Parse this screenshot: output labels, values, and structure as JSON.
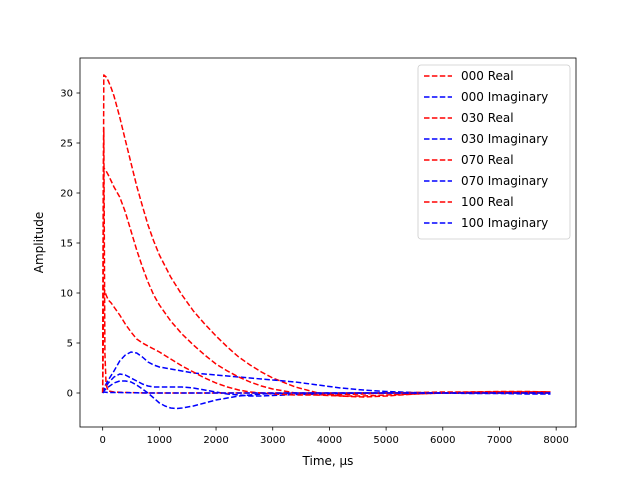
{
  "chart_data": {
    "type": "line",
    "xlabel": "Time, µs",
    "ylabel": "Amplitude",
    "xlim": [
      -400,
      8350
    ],
    "ylim": [
      -3.4,
      33.5
    ],
    "xticks": [
      0,
      1000,
      2000,
      3000,
      4000,
      5000,
      6000,
      7000,
      8000
    ],
    "yticks": [
      0,
      5,
      10,
      15,
      20,
      25,
      30
    ],
    "legend_position": "top-right",
    "colors": {
      "real": "#ff0000",
      "imaginary": "#0000ff"
    },
    "series": [
      {
        "name": "000 Real",
        "color": "#ff0000",
        "x": [
          0,
          20,
          60,
          100,
          150,
          200,
          300,
          400,
          500,
          600,
          700,
          800,
          900,
          1000,
          1200,
          1400,
          1600,
          1800,
          2000,
          2200,
          2400,
          2600,
          2800,
          3000,
          3400,
          3800,
          4200,
          4600,
          5000,
          5500,
          6000,
          6500,
          7000,
          7500,
          7900
        ],
        "y": [
          0.0,
          31.8,
          31.6,
          31.2,
          30.5,
          29.7,
          27.6,
          25.3,
          23.0,
          20.7,
          18.7,
          16.8,
          15.2,
          13.8,
          11.6,
          9.8,
          8.2,
          6.9,
          5.7,
          4.6,
          3.6,
          2.8,
          2.1,
          1.5,
          0.6,
          0.0,
          -0.3,
          -0.4,
          -0.3,
          -0.1,
          0.0,
          0.1,
          0.15,
          0.15,
          0.1
        ]
      },
      {
        "name": "000 Imaginary",
        "color": "#0000ff",
        "x": [
          0,
          20,
          100,
          200,
          300,
          400,
          500,
          600,
          700,
          800,
          900,
          1000,
          1200,
          1400,
          1600,
          1800,
          2000,
          2200,
          2400,
          2600,
          2800,
          3000,
          3400,
          3800,
          4200,
          4600,
          5000,
          5500,
          6000,
          6500,
          7000,
          7500,
          7900
        ],
        "y": [
          0.0,
          0.5,
          1.3,
          2.2,
          3.2,
          3.8,
          4.1,
          4.0,
          3.6,
          3.1,
          2.8,
          2.6,
          2.4,
          2.2,
          2.0,
          1.9,
          1.8,
          1.7,
          1.6,
          1.5,
          1.4,
          1.3,
          1.1,
          0.8,
          0.5,
          0.3,
          0.15,
          0.05,
          0.0,
          -0.05,
          -0.05,
          -0.1,
          -0.1
        ]
      },
      {
        "name": "030 Real",
        "color": "#ff0000",
        "x": [
          0,
          20,
          60,
          100,
          150,
          200,
          300,
          400,
          500,
          600,
          700,
          800,
          900,
          1000,
          1200,
          1400,
          1600,
          1800,
          2000,
          2200,
          2400,
          2600,
          2800,
          3000,
          3400,
          3800,
          4200,
          4600,
          5000,
          5500,
          6000,
          6500,
          7000,
          7500,
          7900
        ],
        "y": [
          0.0,
          22.5,
          22.2,
          21.8,
          21.2,
          20.6,
          19.6,
          18.1,
          16.2,
          14.3,
          12.6,
          11.1,
          9.8,
          8.8,
          7.2,
          5.9,
          4.8,
          3.8,
          2.9,
          2.2,
          1.6,
          1.1,
          0.7,
          0.4,
          0.0,
          -0.2,
          -0.3,
          -0.3,
          -0.2,
          -0.1,
          0.0,
          0.05,
          0.1,
          0.1,
          0.1
        ]
      },
      {
        "name": "030 Imaginary",
        "color": "#0000ff",
        "x": [
          0,
          20,
          100,
          200,
          300,
          400,
          500,
          600,
          700,
          800,
          900,
          1000,
          1200,
          1400,
          1600,
          1800,
          2000,
          2200,
          2400,
          2600,
          2800,
          3000,
          3400,
          3800,
          4200,
          4600,
          5000,
          5500,
          6000,
          7000,
          7900
        ],
        "y": [
          0.0,
          0.3,
          1.0,
          1.6,
          1.9,
          1.8,
          1.5,
          1.2,
          0.9,
          0.7,
          0.6,
          0.6,
          0.6,
          0.6,
          0.5,
          0.3,
          0.1,
          -0.1,
          -0.2,
          -0.3,
          -0.3,
          -0.25,
          -0.15,
          -0.1,
          -0.05,
          0.0,
          0.0,
          0.0,
          0.0,
          0.0,
          0.0
        ]
      },
      {
        "name": "070 Real",
        "color": "#ff0000",
        "x": [
          0,
          20,
          60,
          100,
          150,
          200,
          300,
          400,
          500,
          600,
          700,
          800,
          900,
          1000,
          1200,
          1400,
          1600,
          1800,
          2000,
          2200,
          2400,
          2600,
          2800,
          3000,
          3400,
          3800,
          4200,
          4600,
          5000,
          5500,
          6000,
          7000,
          7900
        ],
        "y": [
          0.0,
          10.5,
          9.8,
          9.3,
          9.0,
          8.6,
          7.8,
          6.9,
          6.1,
          5.4,
          5.0,
          4.7,
          4.4,
          4.1,
          3.4,
          2.7,
          2.1,
          1.5,
          1.0,
          0.6,
          0.3,
          0.1,
          0.0,
          -0.1,
          -0.2,
          -0.2,
          -0.15,
          -0.1,
          0.0,
          0.05,
          0.1,
          0.1,
          0.1
        ]
      },
      {
        "name": "070 Imaginary",
        "color": "#0000ff",
        "x": [
          0,
          20,
          100,
          200,
          300,
          400,
          500,
          600,
          700,
          800,
          900,
          1000,
          1100,
          1200,
          1300,
          1400,
          1600,
          1800,
          2000,
          2200,
          2400,
          2600,
          2800,
          3000,
          3400,
          3800,
          4200,
          5000,
          6000,
          7000,
          7900
        ],
        "y": [
          0.0,
          0.2,
          0.6,
          1.0,
          1.2,
          1.2,
          1.1,
          0.8,
          0.4,
          0.0,
          -0.5,
          -1.0,
          -1.3,
          -1.5,
          -1.55,
          -1.5,
          -1.3,
          -1.0,
          -0.7,
          -0.5,
          -0.3,
          -0.2,
          -0.1,
          -0.05,
          0.0,
          0.0,
          0.0,
          0.0,
          0.0,
          0.0,
          0.0
        ]
      },
      {
        "name": "100 Real",
        "color": "#ff0000",
        "x": [
          0,
          10,
          20,
          30,
          40,
          60,
          100,
          200,
          400,
          800,
          1500,
          3000,
          5000,
          7900
        ],
        "y": [
          0.0,
          20.0,
          26.5,
          14.0,
          4.0,
          0.8,
          0.2,
          0.1,
          0.05,
          0.0,
          0.0,
          0.0,
          0.0,
          0.0
        ]
      },
      {
        "name": "100 Imaginary",
        "color": "#0000ff",
        "x": [
          0,
          20,
          100,
          300,
          800,
          1500,
          3000,
          5000,
          7900
        ],
        "y": [
          0.0,
          0.1,
          0.05,
          0.05,
          0.0,
          0.0,
          0.0,
          0.0,
          0.0
        ]
      }
    ]
  }
}
